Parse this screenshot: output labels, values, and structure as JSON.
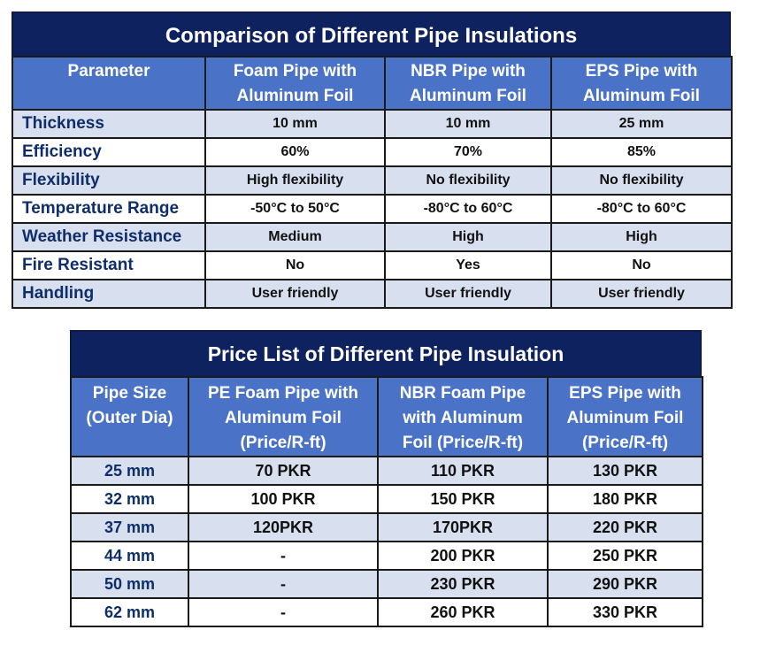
{
  "comparison": {
    "title": "Comparison of Different Pipe Insulations",
    "headers": [
      "Parameter",
      "Foam Pipe with\nAluminum Foil",
      "NBR Pipe with\nAluminum Foil",
      "EPS Pipe with\nAluminum Foil"
    ],
    "rows": [
      [
        "Thickness",
        "10 mm",
        "10 mm",
        "25 mm"
      ],
      [
        "Efficiency",
        "60%",
        "70%",
        "85%"
      ],
      [
        "Flexibility",
        "High flexibility",
        "No flexibility",
        "No flexibility"
      ],
      [
        "Temperature Range",
        "-50°C to 50°C",
        "-80°C to 60°C",
        "-80°C to 60°C"
      ],
      [
        "Weather Resistance",
        "Medium",
        "High",
        "High"
      ],
      [
        "Fire Resistant",
        "No",
        "Yes",
        "No"
      ],
      [
        "Handling",
        "User friendly",
        "User friendly",
        "User friendly"
      ]
    ]
  },
  "price_list": {
    "title": "Price List of Different Pipe Insulation",
    "headers": [
      "Pipe Size\n(Outer Dia)",
      "PE Foam Pipe with\nAluminum Foil\n(Price/R-ft)",
      "NBR Foam Pipe\nwith Aluminum\nFoil (Price/R-ft)",
      "EPS Pipe with\nAluminum Foil\n(Price/R-ft)"
    ],
    "rows": [
      [
        "25 mm",
        "70 PKR",
        "110 PKR",
        "130 PKR"
      ],
      [
        "32 mm",
        "100 PKR",
        "150 PKR",
        "180 PKR"
      ],
      [
        "37 mm",
        "120PKR",
        "170PKR",
        "220 PKR"
      ],
      [
        "44 mm",
        "-",
        "200 PKR",
        "250 PKR"
      ],
      [
        "50 mm",
        "-",
        "230 PKR",
        "290 PKR"
      ],
      [
        "62 mm",
        "-",
        "260 PKR",
        "330 PKR"
      ]
    ]
  },
  "colors": {
    "title_bg": "#0f2260",
    "header_bg": "#4a73c7",
    "row_alt_bg": "#d8e0f0",
    "param_text": "#0f2d6b"
  }
}
